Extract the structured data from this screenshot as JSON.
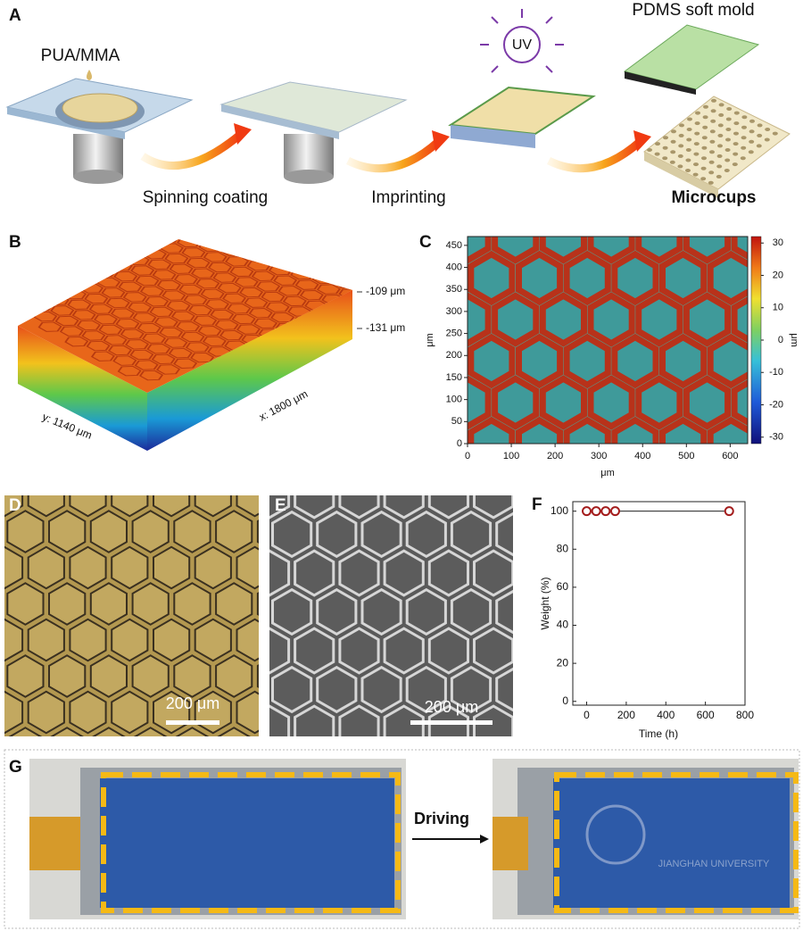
{
  "panel_a": {
    "label": "A",
    "droplet": "PUA/MMA",
    "uv": "UV",
    "mold": "PDMS soft mold",
    "step_1": "Spinning coating",
    "step_2": "Imprinting",
    "result": "Microcups"
  },
  "panel_b": {
    "label": "B",
    "top_height": "-109 μm",
    "bottom_height": "-131 μm",
    "y_size": "y: 1140 μm",
    "x_size": "x: 1800 μm"
  },
  "panel_c": {
    "label": "C",
    "xlabel": "μm",
    "ylabel": "μm",
    "colorbar_label": "μm",
    "xlim": [
      0,
      640
    ],
    "xticks": [
      0,
      100,
      200,
      300,
      400,
      500,
      600
    ],
    "ylim": [
      0,
      470
    ],
    "yticks": [
      0,
      50,
      100,
      150,
      200,
      250,
      300,
      350,
      400,
      450
    ],
    "clim": [
      -32,
      32
    ],
    "cticks": [
      -30,
      -20,
      -10,
      0,
      10,
      20,
      30
    ]
  },
  "panel_d": {
    "label": "D",
    "scale_bar": "200 μm"
  },
  "panel_e": {
    "label": "E",
    "scale_bar": "200 μm"
  },
  "chart_data": {
    "type": "line",
    "label": "F",
    "xlabel": "Time (h)",
    "ylabel": "Weight (%)",
    "x": [
      0,
      48,
      96,
      144,
      720
    ],
    "values": [
      100,
      100,
      100,
      100,
      100
    ],
    "color": "#a31c1c",
    "xlim": [
      -70,
      800
    ],
    "xticks": [
      0,
      200,
      400,
      600,
      800
    ],
    "ylim": [
      -2,
      105
    ],
    "yticks": [
      0,
      20,
      40,
      60,
      80,
      100
    ]
  },
  "panel_g": {
    "label": "G",
    "action": "Driving",
    "logo_text": "JIANGHAN UNIVERSITY"
  }
}
